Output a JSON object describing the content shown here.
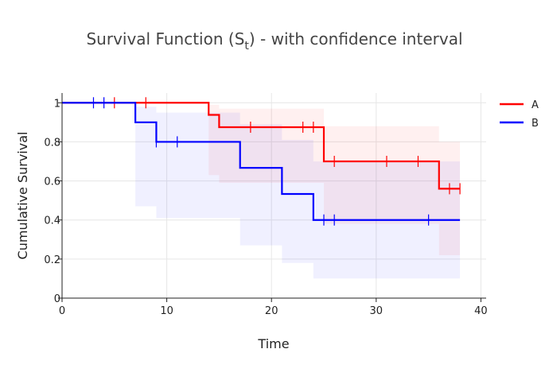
{
  "chart_data": {
    "type": "line",
    "title": "Survival Function (S",
    "title_sub": "t",
    "title_after": ") - with confidence interval",
    "xlabel": "Time",
    "ylabel": "Cumulative Survival",
    "xlim": [
      0,
      40.5
    ],
    "ylim": [
      0,
      1.05
    ],
    "x_ticks": [
      0,
      10,
      20,
      30,
      40
    ],
    "y_ticks": [
      0,
      0.2,
      0.4,
      0.6,
      0.8,
      1
    ],
    "y_tick_labels": [
      "0",
      "0.2",
      "0.4",
      "0.6",
      "0.8",
      "1"
    ],
    "grid": true,
    "legend_position": "top-right",
    "series": [
      {
        "name": "A",
        "color": "#ff0000",
        "band_color": "#ff0000",
        "steps": [
          [
            0,
            1
          ],
          [
            14,
            0.938
          ],
          [
            15,
            0.875
          ],
          [
            25,
            0.7
          ],
          [
            36,
            0.56
          ],
          [
            38,
            0.56
          ]
        ],
        "ci": [
          [
            0,
            1,
            1
          ],
          [
            14,
            0.63,
            0.99
          ],
          [
            15,
            0.59,
            0.97
          ],
          [
            25,
            0.38,
            0.88
          ],
          [
            36,
            0.22,
            0.8
          ],
          [
            38,
            0.22,
            0.8
          ]
        ],
        "censored": [
          5,
          8,
          18,
          23,
          24,
          26,
          31,
          34,
          37,
          38
        ]
      },
      {
        "name": "B",
        "color": "#0000ff",
        "band_color": "#0000ff",
        "steps": [
          [
            0,
            1
          ],
          [
            7,
            0.9
          ],
          [
            9,
            0.8
          ],
          [
            17,
            0.667
          ],
          [
            21,
            0.533
          ],
          [
            24,
            0.4
          ],
          [
            38,
            0.4
          ]
        ],
        "ci": [
          [
            0,
            1,
            1
          ],
          [
            7,
            0.47,
            0.98
          ],
          [
            9,
            0.41,
            0.95
          ],
          [
            17,
            0.27,
            0.89
          ],
          [
            21,
            0.18,
            0.81
          ],
          [
            24,
            0.1,
            0.7
          ],
          [
            38,
            0.1,
            0.7
          ]
        ],
        "censored": [
          3,
          4,
          9,
          11,
          25,
          26,
          35
        ]
      }
    ]
  }
}
